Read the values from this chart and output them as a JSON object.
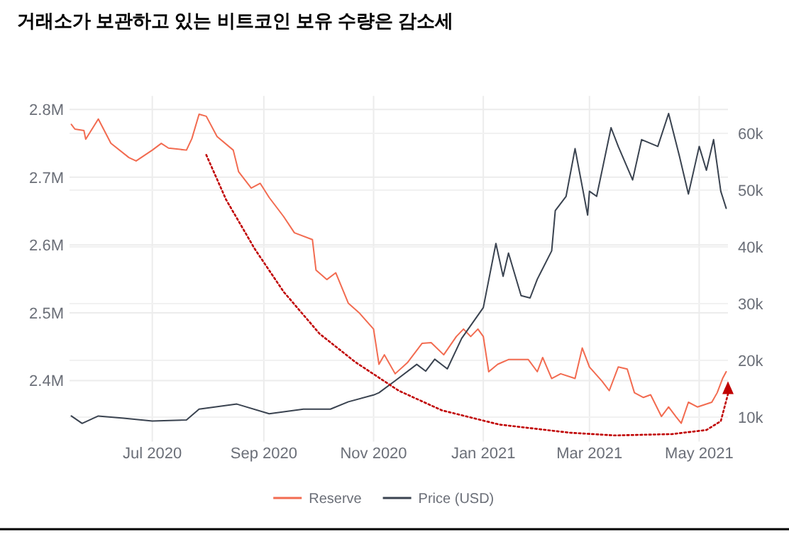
{
  "chart_data": {
    "type": "line",
    "title": "거래소가 보관하고 있는 비트코인 보유 수량은 감소세",
    "xlim": [
      "2020-05-16",
      "2021-05-17"
    ],
    "xticks": [
      {
        "value": "2020-07-01",
        "label": "Jul 2020"
      },
      {
        "value": "2020-09-01",
        "label": "Sep 2020"
      },
      {
        "value": "2020-11-01",
        "label": "Nov 2020"
      },
      {
        "value": "2021-01-01",
        "label": "Jan 2021"
      },
      {
        "value": "2021-03-01",
        "label": "Mar 2021"
      },
      {
        "value": "2021-05-01",
        "label": "May 2021"
      }
    ],
    "ylim": [
      2.31,
      2.82
    ],
    "yticks": [
      {
        "value": 2.4,
        "label": "2.4M"
      },
      {
        "value": 2.5,
        "label": "2.5M"
      },
      {
        "value": 2.6,
        "label": "2.6M"
      },
      {
        "value": 2.7,
        "label": "2.7M"
      },
      {
        "value": 2.8,
        "label": "2.8M"
      }
    ],
    "y2lim": [
      5.7,
      66.6
    ],
    "y2ticks": [
      {
        "value": 10,
        "label": "10k"
      },
      {
        "value": 20,
        "label": "20k"
      },
      {
        "value": 30,
        "label": "30k"
      },
      {
        "value": 40,
        "label": "40k"
      },
      {
        "value": 50,
        "label": "50k"
      },
      {
        "value": 60,
        "label": "60k"
      }
    ],
    "grid": true,
    "legend": "bottom",
    "line_style": "solid",
    "marker": "none",
    "series": [
      {
        "name": "Reserve",
        "color": "#f26b50",
        "x": [
          "2020-05-17",
          "2020-05-19",
          "2020-05-24",
          "2020-05-25",
          "2020-06-01",
          "2020-06-08",
          "2020-06-18",
          "2020-06-22",
          "2020-07-01",
          "2020-07-06",
          "2020-07-10",
          "2020-07-20",
          "2020-07-23",
          "2020-07-27",
          "2020-07-31",
          "2020-08-06",
          "2020-08-15",
          "2020-08-18",
          "2020-08-25",
          "2020-08-30",
          "2020-09-04",
          "2020-09-12",
          "2020-09-18",
          "2020-09-28",
          "2020-09-30",
          "2020-10-06",
          "2020-10-11",
          "2020-10-18",
          "2020-10-24",
          "2020-11-01",
          "2020-11-04",
          "2020-11-07",
          "2020-11-13",
          "2020-11-20",
          "2020-11-28",
          "2020-12-03",
          "2020-12-10",
          "2020-12-17",
          "2020-12-21",
          "2020-12-25",
          "2020-12-29",
          "2021-01-01",
          "2021-01-04",
          "2021-01-09",
          "2021-01-15",
          "2021-01-26",
          "2021-01-31",
          "2021-02-03",
          "2021-02-08",
          "2021-02-13",
          "2021-02-21",
          "2021-02-25",
          "2021-03-01",
          "2021-03-08",
          "2021-03-12",
          "2021-03-17",
          "2021-03-22",
          "2021-03-26",
          "2021-03-31",
          "2021-04-04",
          "2021-04-10",
          "2021-04-14",
          "2021-04-18",
          "2021-04-21",
          "2021-04-25",
          "2021-04-30",
          "2021-05-08",
          "2021-05-11",
          "2021-05-14",
          "2021-05-16"
        ],
        "values": [
          2.778,
          2.771,
          2.769,
          2.756,
          2.786,
          2.75,
          2.729,
          2.724,
          2.74,
          2.75,
          2.743,
          2.74,
          2.757,
          2.793,
          2.79,
          2.76,
          2.74,
          2.708,
          2.684,
          2.691,
          2.67,
          2.642,
          2.618,
          2.608,
          2.563,
          2.549,
          2.559,
          2.514,
          2.5,
          2.476,
          2.424,
          2.438,
          2.41,
          2.427,
          2.455,
          2.456,
          2.438,
          2.465,
          2.476,
          2.465,
          2.476,
          2.465,
          2.413,
          2.424,
          2.431,
          2.431,
          2.413,
          2.434,
          2.403,
          2.41,
          2.403,
          2.448,
          2.42,
          2.399,
          2.385,
          2.42,
          2.417,
          2.382,
          2.375,
          2.379,
          2.347,
          2.361,
          2.347,
          2.337,
          2.368,
          2.361,
          2.368,
          2.382,
          2.403,
          2.413
        ]
      },
      {
        "name": "Price (USD)",
        "color": "#3a4350",
        "axis": "y2",
        "x": [
          "2020-05-17",
          "2020-05-23",
          "2020-06-01",
          "2020-06-15",
          "2020-07-01",
          "2020-07-20",
          "2020-07-27",
          "2020-08-17",
          "2020-09-04",
          "2020-09-23",
          "2020-10-08",
          "2020-10-18",
          "2020-11-01",
          "2020-11-04",
          "2020-11-13",
          "2020-11-25",
          "2020-11-30",
          "2020-12-05",
          "2020-12-12",
          "2020-12-20",
          "2021-01-01",
          "2021-01-08",
          "2021-01-12",
          "2021-01-15",
          "2021-01-22",
          "2021-01-27",
          "2021-01-31",
          "2021-02-08",
          "2021-02-10",
          "2021-02-16",
          "2021-02-21",
          "2021-02-28",
          "2021-03-01",
          "2021-03-05",
          "2021-03-13",
          "2021-03-17",
          "2021-03-25",
          "2021-03-30",
          "2021-04-08",
          "2021-04-14",
          "2021-04-20",
          "2021-04-25",
          "2021-05-01",
          "2021-05-05",
          "2021-05-09",
          "2021-05-13",
          "2021-05-16"
        ],
        "values": [
          10.2,
          8.9,
          10.2,
          9.8,
          9.3,
          9.5,
          11.4,
          12.3,
          10.6,
          11.4,
          11.4,
          12.7,
          13.9,
          14.3,
          16.4,
          19.3,
          18.1,
          20.2,
          18.5,
          23.9,
          29.3,
          40.6,
          34.8,
          38.9,
          31.4,
          31,
          34.3,
          39.3,
          46.4,
          48.9,
          57.3,
          45.6,
          49.8,
          48.9,
          61,
          57.7,
          51.8,
          58.9,
          57.7,
          63.5,
          56,
          49.3,
          57.7,
          53.5,
          58.9,
          49.8,
          46.8
        ]
      },
      {
        "type": "line",
        "color": "#c00000",
        "line_style": "dotted",
        "x": [
          "2020-07-31",
          "2020-08-11",
          "2020-08-27",
          "2020-09-12",
          "2020-10-02",
          "2020-10-22",
          "2020-11-15",
          "2020-12-09",
          "2021-01-10",
          "2021-02-18",
          "2021-03-15",
          "2021-04-16",
          "2021-05-05",
          "2021-05-13",
          "2021-05-17"
        ],
        "values": [
          2.733,
          2.667,
          2.594,
          2.531,
          2.469,
          2.427,
          2.385,
          2.356,
          2.335,
          2.323,
          2.319,
          2.321,
          2.327,
          2.34,
          2.38
        ]
      }
    ]
  }
}
